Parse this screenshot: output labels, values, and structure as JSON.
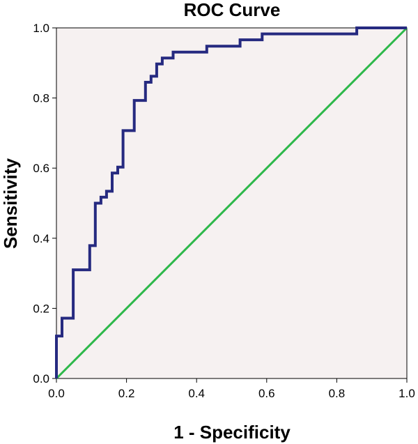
{
  "chart_data": {
    "type": "line",
    "title": "ROC Curve",
    "xlabel": "1 - Specificity",
    "ylabel": "Sensitivity",
    "xlim": [
      0,
      1
    ],
    "ylim": [
      0,
      1
    ],
    "x_ticks": [
      "0.0",
      "0.2",
      "0.4",
      "0.6",
      "0.8",
      "1.0"
    ],
    "y_ticks": [
      "0.0",
      "0.2",
      "0.4",
      "0.6",
      "0.8",
      "1.0"
    ],
    "grid": false,
    "plot_background": "#f6f1f1",
    "series": [
      {
        "color": "#262a80",
        "x": [
          0,
          0,
          0.016,
          0.016,
          0.048,
          0.048,
          0.095,
          0.095,
          0.111,
          0.111,
          0.127,
          0.127,
          0.143,
          0.143,
          0.159,
          0.159,
          0.175,
          0.175,
          0.19,
          0.19,
          0.222,
          0.222,
          0.254,
          0.254,
          0.27,
          0.27,
          0.286,
          0.286,
          0.302,
          0.302,
          0.333,
          0.333,
          0.429,
          0.429,
          0.524,
          0.524,
          0.587,
          0.587,
          0.857,
          0.857,
          1.0
        ],
        "y": [
          0,
          0.121,
          0.121,
          0.172,
          0.172,
          0.31,
          0.31,
          0.379,
          0.379,
          0.5,
          0.5,
          0.517,
          0.517,
          0.534,
          0.534,
          0.586,
          0.586,
          0.603,
          0.603,
          0.707,
          0.707,
          0.793,
          0.793,
          0.845,
          0.845,
          0.862,
          0.862,
          0.897,
          0.897,
          0.914,
          0.914,
          0.931,
          0.931,
          0.948,
          0.948,
          0.966,
          0.966,
          0.983,
          0.983,
          1.0,
          1.0
        ]
      },
      {
        "color": "#2db84a",
        "x": [
          0,
          1
        ],
        "y": [
          0,
          1
        ]
      }
    ]
  }
}
